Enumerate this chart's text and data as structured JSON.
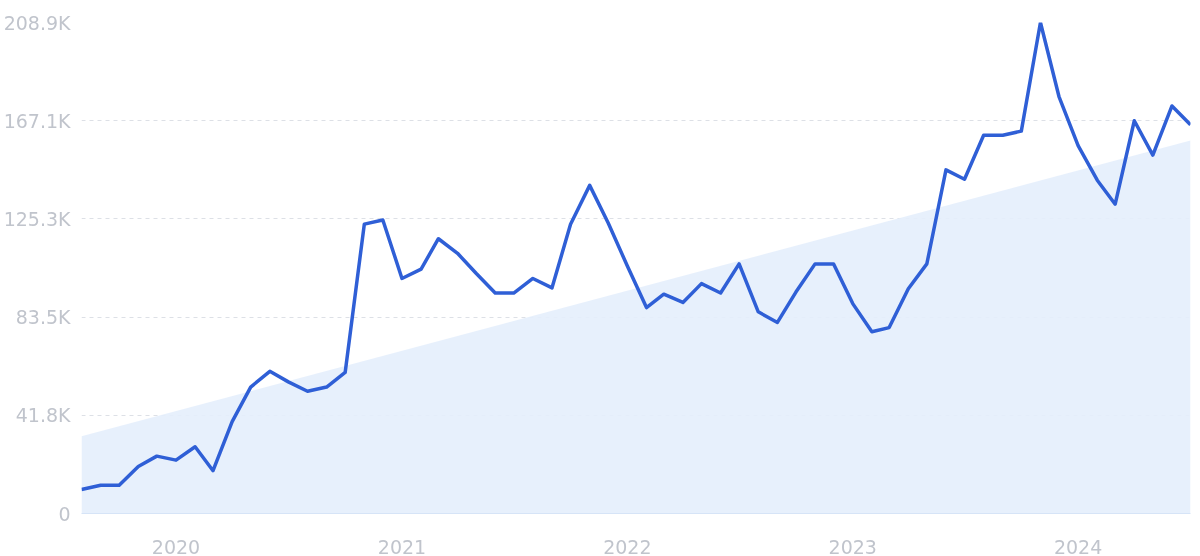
{
  "chart_data": {
    "type": "line",
    "x": [
      "2019-08",
      "2019-09",
      "2019-10",
      "2019-11",
      "2019-12",
      "2020-01",
      "2020-02",
      "2020-03",
      "2020-04",
      "2020-05",
      "2020-06",
      "2020-07",
      "2020-08",
      "2020-09",
      "2020-10",
      "2020-11",
      "2020-12",
      "2021-01",
      "2021-02",
      "2021-03",
      "2021-04",
      "2021-05",
      "2021-06",
      "2021-07",
      "2021-08",
      "2021-09",
      "2021-10",
      "2021-11",
      "2021-12",
      "2022-01",
      "2022-02",
      "2022-03",
      "2022-04",
      "2022-05",
      "2022-06",
      "2022-07",
      "2022-08",
      "2022-09",
      "2022-10",
      "2022-11",
      "2022-12",
      "2023-01",
      "2023-02",
      "2023-03",
      "2023-04",
      "2023-05",
      "2023-06",
      "2023-07",
      "2023-08",
      "2023-09",
      "2023-10",
      "2023-11",
      "2023-12",
      "2024-01",
      "2024-02",
      "2024-03",
      "2024-04",
      "2024-05",
      "2024-06",
      "2024-07"
    ],
    "series": [
      {
        "type": "area",
        "color": "#e4eefc",
        "x": [
          "2019-08",
          "2024-07"
        ],
        "values": [
          32.9,
          158.7
        ]
      },
      {
        "color": "#2f5fd6",
        "values": [
          10.2,
          12.0,
          12.0,
          20.0,
          24.4,
          22.7,
          28.4,
          18.2,
          39.1,
          53.8,
          60.5,
          56.0,
          52.0,
          53.8,
          60.0,
          123.1,
          124.9,
          100.0,
          104.0,
          116.9,
          110.7,
          102.2,
          93.8,
          93.8,
          100.0,
          96.0,
          123.1,
          139.6,
          123.6,
          105.3,
          87.6,
          93.3,
          89.8,
          97.8,
          93.8,
          106.2,
          85.8,
          81.3,
          94.2,
          106.2,
          106.2,
          89.3,
          77.3,
          79.1,
          95.6,
          106.2,
          146.2,
          142.2,
          160.9,
          160.9,
          162.7,
          208.9,
          177.4,
          156.5,
          141.8,
          131.6,
          167.1,
          152.5,
          173.4,
          165.4
        ]
      }
    ],
    "xlim": [
      "2019-08",
      "2024-07"
    ],
    "xticks": [
      {
        "value": "2020-01",
        "label": "2020"
      },
      {
        "value": "2021-01",
        "label": "2021"
      },
      {
        "value": "2022-01",
        "label": "2022"
      },
      {
        "value": "2023-01",
        "label": "2023"
      },
      {
        "value": "2024-01",
        "label": "2024"
      }
    ],
    "ylim": [
      0,
      208.9
    ],
    "yticks": [
      0,
      {
        "value": 41.8,
        "label": "41.8K"
      },
      {
        "value": 83.5,
        "label": "83.5K"
      },
      {
        "value": 125.3,
        "label": "125.3K"
      },
      {
        "value": 167.1,
        "label": "167.1K"
      },
      {
        "value": 208.9,
        "label": "208.9K"
      }
    ],
    "grid": "y",
    "line_style": "solid"
  }
}
